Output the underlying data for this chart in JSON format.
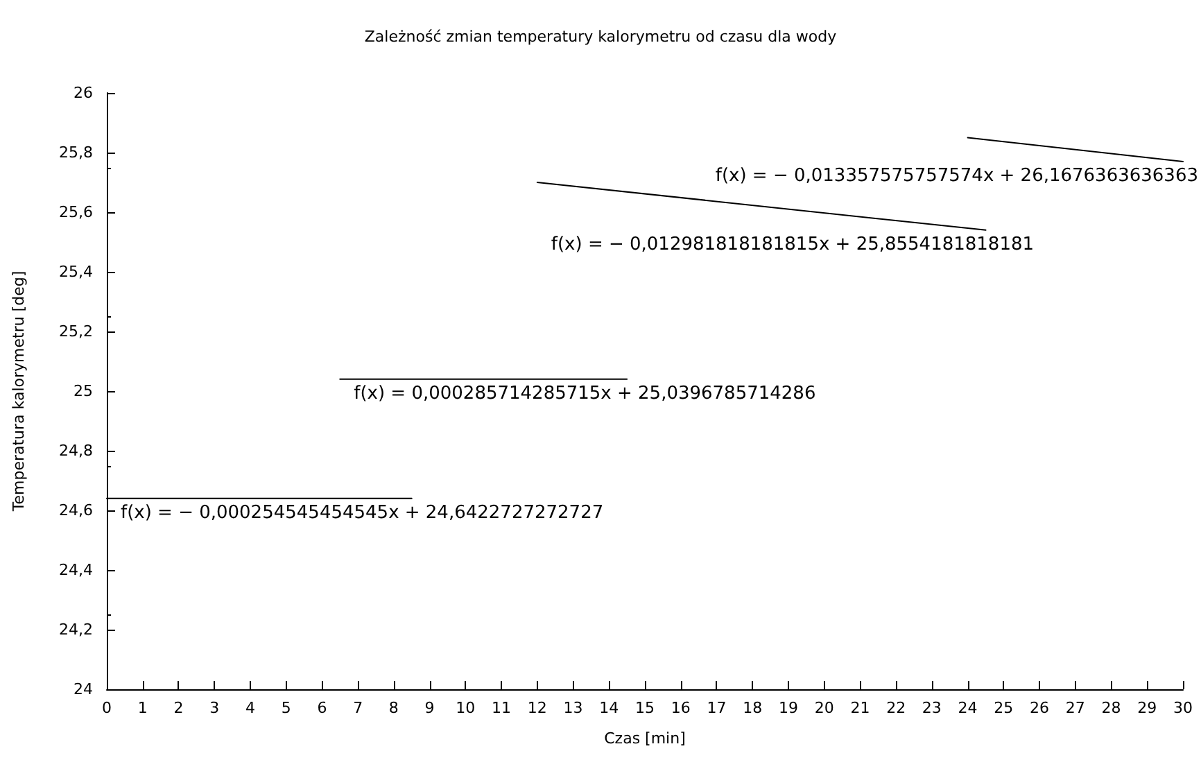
{
  "chart_data": {
    "type": "line",
    "title": "Zależność zmian temperatury kalorymetru od czasu dla wody",
    "xlabel": "Czas [min]",
    "ylabel": "Temperatura kalorymetru [deg]",
    "xlim": [
      0,
      30
    ],
    "xticks": [
      0,
      1,
      2,
      3,
      4,
      5,
      6,
      7,
      8,
      9,
      10,
      11,
      12,
      13,
      14,
      15,
      16,
      17,
      18,
      19,
      20,
      21,
      22,
      23,
      24,
      25,
      26,
      27,
      28,
      29,
      30
    ],
    "ylim": [
      24,
      26
    ],
    "yticks": [
      24,
      {
        "value": 24.2,
        "label": "24,2"
      },
      {
        "value": 24.4,
        "label": "24,4"
      },
      {
        "value": 24.6,
        "label": "24,6"
      },
      {
        "value": 24.8,
        "label": "24,8"
      },
      25,
      {
        "value": 25.2,
        "label": "25,2"
      },
      {
        "value": 25.4,
        "label": "25,4"
      },
      {
        "value": 25.6,
        "label": "25,6"
      },
      {
        "value": 25.8,
        "label": "25,8"
      },
      26
    ],
    "grid": false,
    "marker": "none",
    "line_style": "solid",
    "series": [
      {
        "color": "#000000",
        "x": [
          0,
          8.5
        ],
        "values": [
          24.64,
          24.64
        ]
      },
      {
        "color": "#000000",
        "x": [
          6.5,
          14.5
        ],
        "values": [
          25.04,
          25.04
        ]
      },
      {
        "color": "#000000",
        "x": [
          12,
          24.5
        ],
        "values": [
          25.7,
          25.54
        ]
      },
      {
        "color": "#000000",
        "x": [
          24,
          30
        ],
        "values": [
          25.85,
          25.77
        ]
      }
    ],
    "annotations": [
      "f(x) = − 0,000254545454545x + 24,6422727272727",
      "f(x) = 0,000285714285715x + 25,0396785714286",
      "f(x) = − 0,012981818181815x + 25,8554181818181",
      "f(x) = − 0,013357575757574x + 26,1676363636363"
    ]
  }
}
